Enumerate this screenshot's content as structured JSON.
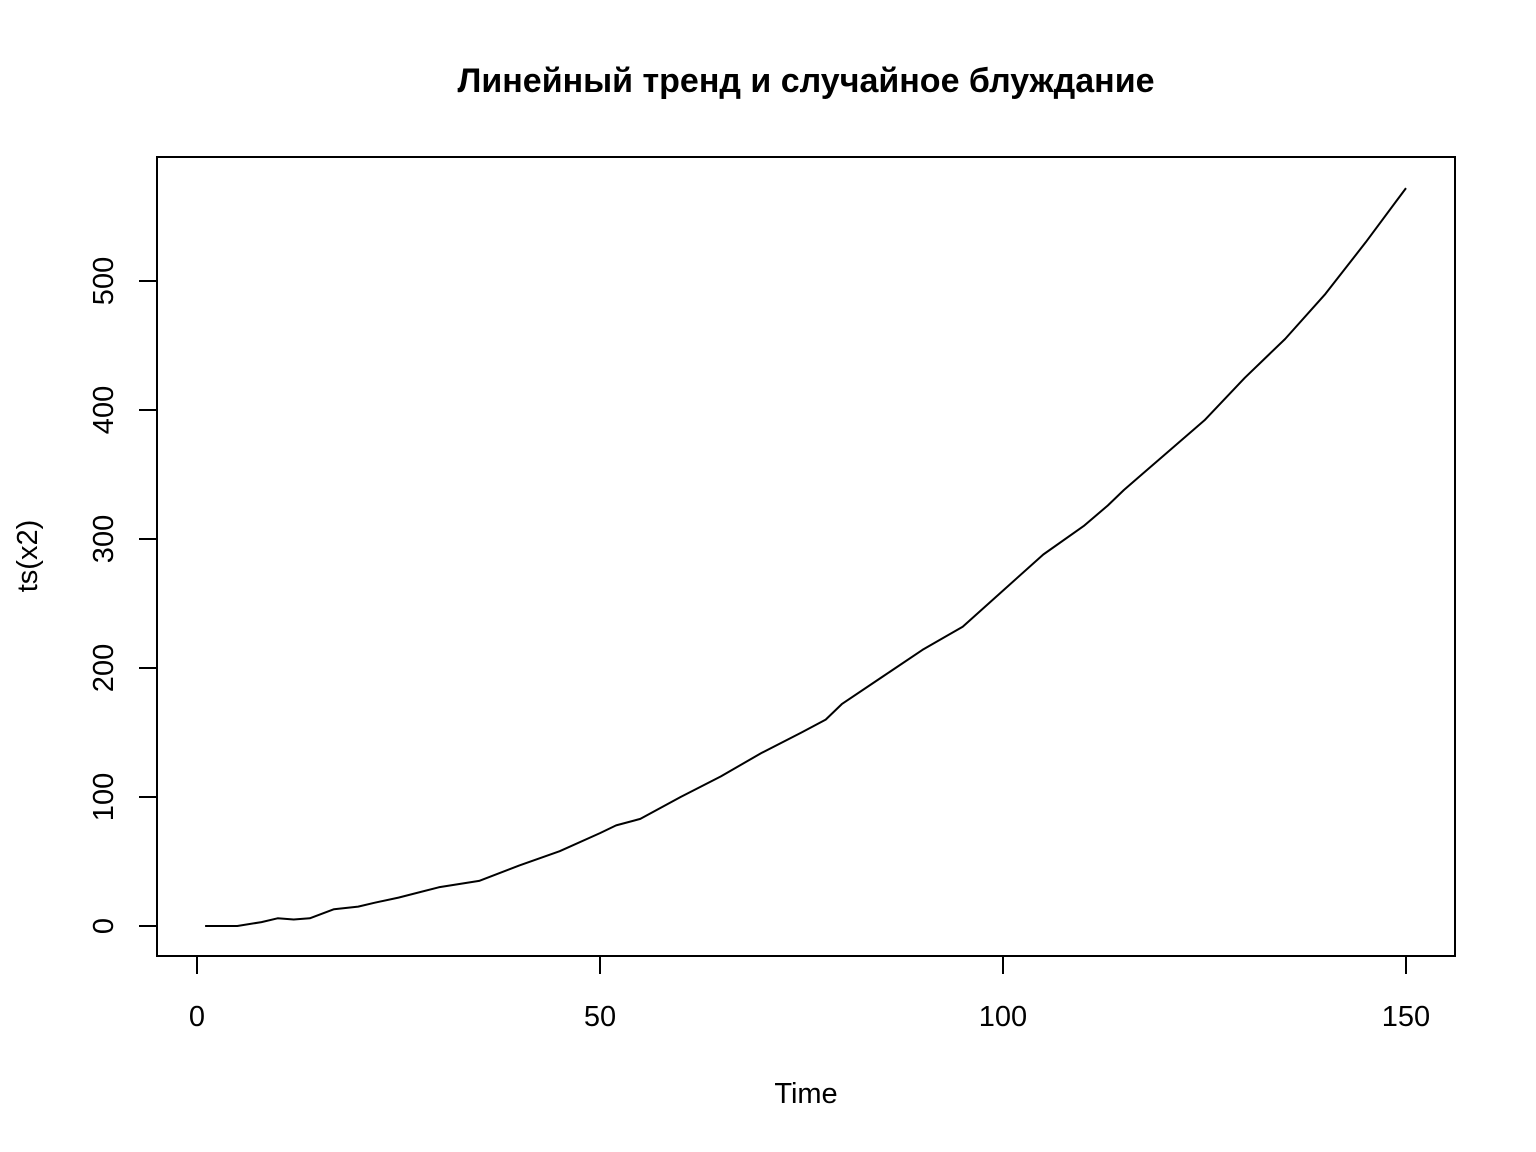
{
  "chart_data": {
    "type": "line",
    "title": "Линейный тренд и случайное блуждание",
    "xlabel": "Time",
    "ylabel": "ts(x2)",
    "xlim": [
      1,
      150
    ],
    "ylim": [
      0,
      570
    ],
    "x_ticks": [
      0,
      50,
      100,
      150
    ],
    "y_ticks": [
      0,
      100,
      200,
      300,
      400,
      500
    ],
    "x_tick_labels": [
      "0",
      "50",
      "100",
      "150"
    ],
    "y_tick_labels": [
      "0",
      "100",
      "200",
      "300",
      "400",
      "500"
    ],
    "grid": false,
    "legend": "none",
    "line_color": "#000000",
    "x": [
      1,
      5,
      8,
      10,
      12,
      14,
      17,
      20,
      22,
      25,
      30,
      35,
      40,
      45,
      50,
      52,
      55,
      60,
      65,
      70,
      75,
      78,
      80,
      85,
      90,
      95,
      100,
      105,
      110,
      113,
      115,
      120,
      125,
      130,
      135,
      140,
      145,
      150
    ],
    "y": [
      0,
      0,
      3,
      6,
      5,
      6,
      13,
      15,
      18,
      22,
      30,
      35,
      47,
      58,
      72,
      78,
      83,
      100,
      116,
      134,
      150,
      160,
      172,
      193,
      214,
      232,
      260,
      288,
      310,
      326,
      338,
      365,
      392,
      425,
      455,
      490,
      530,
      572
    ]
  }
}
